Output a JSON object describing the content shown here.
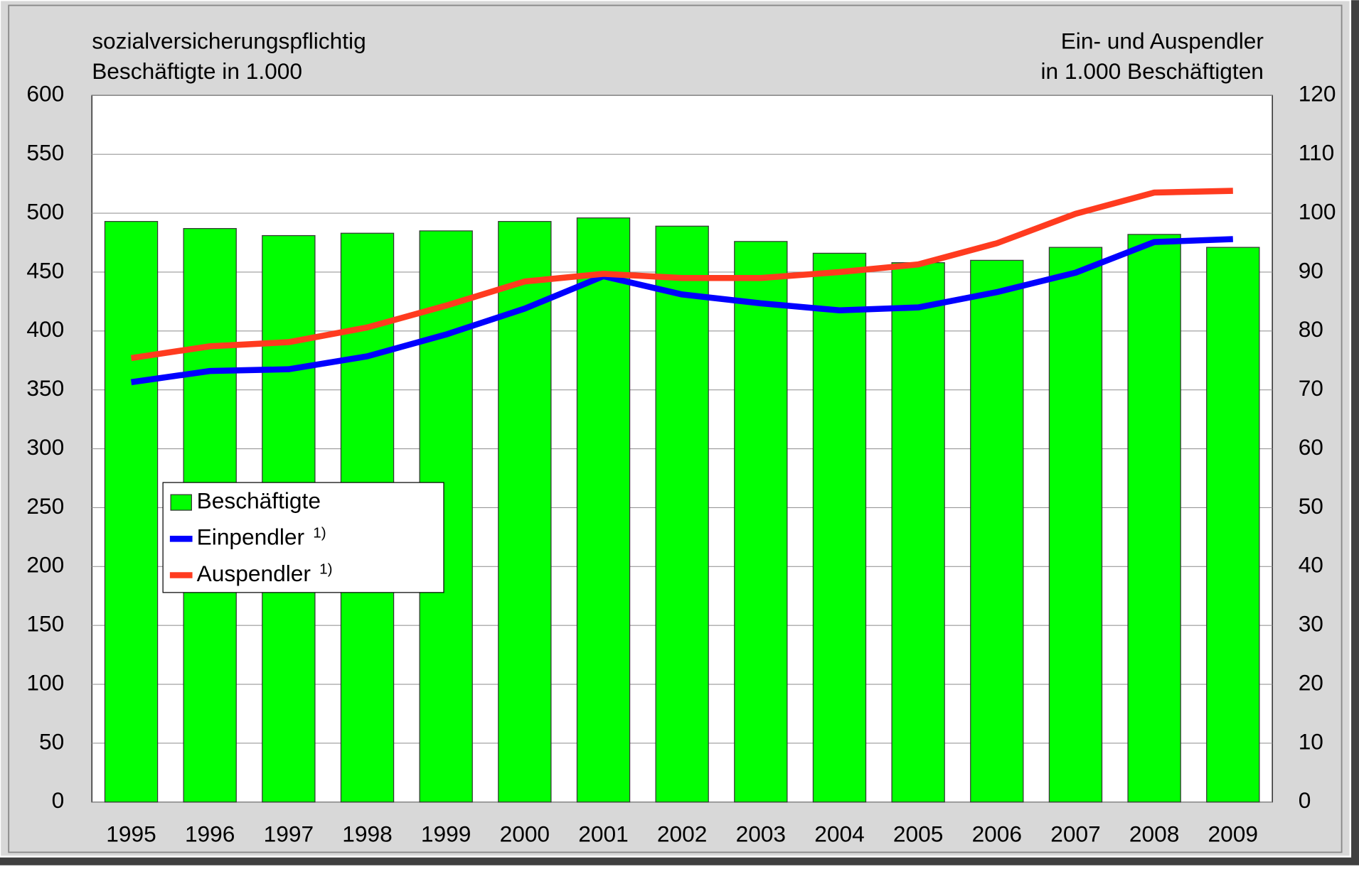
{
  "chart_data": {
    "type": "bar_line",
    "y_label": [
      "sozialversicherungspflichtig",
      "Beschäftigte in 1.000"
    ],
    "y2_label": [
      "Ein- und Auspendler",
      "in 1.000 Beschäftigten"
    ],
    "categories": [
      "1995",
      "1996",
      "1997",
      "1998",
      "1999",
      "2000",
      "2001",
      "2002",
      "2003",
      "2004",
      "2005",
      "2006",
      "2007",
      "2008",
      "2009"
    ],
    "series": [
      {
        "name": "Beschäftigte",
        "type": "bar",
        "color": "#00ff00",
        "values": [
          493,
          487,
          481,
          483,
          485,
          493,
          496,
          489,
          476,
          466,
          458,
          460,
          471,
          482,
          471
        ]
      },
      {
        "name": "Einpendler",
        "note": "1)",
        "type": "line",
        "axis": "y2",
        "color": "#0000ff",
        "values": [
          71.3,
          73.2,
          73.5,
          75.7,
          79.4,
          83.8,
          89.3,
          86.2,
          84.7,
          83.5,
          84.0,
          86.6,
          89.9,
          95.1,
          95.6
        ]
      },
      {
        "name": "Auspendler",
        "note": "1)",
        "type": "line",
        "axis": "y2",
        "color": "#ff3b1f",
        "values": [
          75.4,
          77.4,
          78.1,
          80.6,
          84.3,
          88.4,
          89.7,
          89.0,
          89.0,
          90.0,
          91.3,
          94.9,
          99.9,
          103.5,
          103.8
        ]
      }
    ],
    "ylim": [
      0,
      600
    ],
    "yticks": [
      0,
      50,
      100,
      150,
      200,
      250,
      300,
      350,
      400,
      450,
      500,
      550,
      600
    ],
    "y2lim": [
      0,
      120
    ],
    "y2ticks": [
      0,
      10,
      20,
      30,
      40,
      50,
      60,
      70,
      80,
      90,
      100,
      110,
      120
    ],
    "grid": true,
    "legend": "lower left"
  }
}
